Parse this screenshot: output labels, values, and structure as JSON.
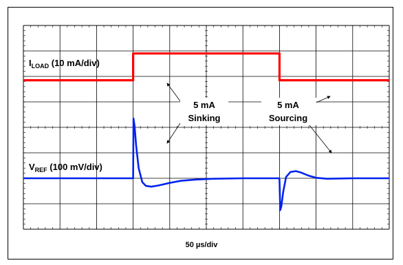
{
  "chart_data": {
    "type": "line",
    "xlabel": "50 µs/div",
    "grid": true,
    "divisions": {
      "x": 10,
      "y": 8
    },
    "series": [
      {
        "name": "ILOAD",
        "color": "#ff0000",
        "label_main": "I",
        "label_sub": "LOAD",
        "label_rest": " (10 mA/div)",
        "points": [
          [
            0,
            5.85
          ],
          [
            3,
            5.85
          ],
          [
            3,
            6.9
          ],
          [
            7,
            6.9
          ],
          [
            7,
            5.85
          ],
          [
            10,
            5.85
          ]
        ]
      },
      {
        "name": "VREF",
        "color": "#0022ee",
        "label_main": "V",
        "label_sub": "REF",
        "label_rest": " (100 mV/div)",
        "points": [
          [
            0,
            2.0
          ],
          [
            2.98,
            2.0
          ],
          [
            3.0,
            2.0
          ],
          [
            3.01,
            4.35
          ],
          [
            3.04,
            4.05
          ],
          [
            3.08,
            3.3
          ],
          [
            3.15,
            2.4
          ],
          [
            3.25,
            1.85
          ],
          [
            3.35,
            1.7
          ],
          [
            3.5,
            1.67
          ],
          [
            3.7,
            1.72
          ],
          [
            4.0,
            1.82
          ],
          [
            4.3,
            1.9
          ],
          [
            4.7,
            1.95
          ],
          [
            5.2,
            1.98
          ],
          [
            6.0,
            2.0
          ],
          [
            6.99,
            2.0
          ],
          [
            7.0,
            1.95
          ],
          [
            7.02,
            0.75
          ],
          [
            7.05,
            0.9
          ],
          [
            7.1,
            1.45
          ],
          [
            7.18,
            2.05
          ],
          [
            7.3,
            2.25
          ],
          [
            7.45,
            2.28
          ],
          [
            7.6,
            2.22
          ],
          [
            7.8,
            2.1
          ],
          [
            8.0,
            2.02
          ],
          [
            8.3,
            1.98
          ],
          [
            9.0,
            2.0
          ],
          [
            10,
            2.0
          ]
        ]
      }
    ],
    "annotations": [
      {
        "text_lines": [
          "5 mA",
          "Sinking"
        ]
      },
      {
        "text_lines": [
          "5 mA",
          "Sourcing"
        ]
      }
    ]
  }
}
